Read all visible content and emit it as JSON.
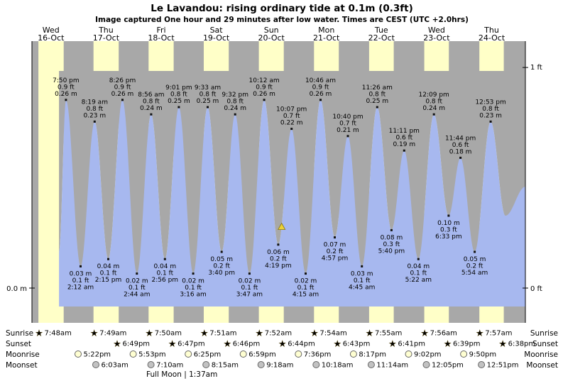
{
  "header": {
    "title": "Le Lavandou: rising ordinary tide at 0.1m (0.3ft)",
    "subtitle": "Image captured One hour and 29 minutes after low water. Times are CEST (UTC +2.0hrs)"
  },
  "chart_data": {
    "type": "area",
    "axis": {
      "left_zero": "0.0 m",
      "right_top": "1 ft",
      "right_bottom": "0 ft"
    },
    "days": [
      {
        "weekday": "Wed",
        "date": "16-Oct"
      },
      {
        "weekday": "Thu",
        "date": "17-Oct"
      },
      {
        "weekday": "Fri",
        "date": "18-Oct"
      },
      {
        "weekday": "Sat",
        "date": "19-Oct"
      },
      {
        "weekday": "Sun",
        "date": "20-Oct"
      },
      {
        "weekday": "Mon",
        "date": "21-Oct"
      },
      {
        "weekday": "Tue",
        "date": "22-Oct"
      },
      {
        "weekday": "Wed",
        "date": "23-Oct"
      },
      {
        "weekday": "Thu",
        "date": "24-Oct"
      }
    ],
    "tides": [
      {
        "day": 0,
        "type": "high",
        "time": "7:50 pm",
        "ft": "0.9 ft",
        "m": "0.26 m"
      },
      {
        "day": 1,
        "type": "low",
        "time": "2:12 am",
        "ft": "0.1 ft",
        "m": "0.03 m"
      },
      {
        "day": 1,
        "type": "high",
        "time": "8:19 am",
        "ft": "0.8 ft",
        "m": "0.23 m"
      },
      {
        "day": 1,
        "type": "low",
        "time": "2:15 pm",
        "ft": "0.1 ft",
        "m": "0.04 m"
      },
      {
        "day": 1,
        "type": "high",
        "time": "8:26 pm",
        "ft": "0.9 ft",
        "m": "0.26 m"
      },
      {
        "day": 2,
        "type": "low",
        "time": "2:44 am",
        "ft": "0.1 ft",
        "m": "0.02 m"
      },
      {
        "day": 2,
        "type": "high",
        "time": "8:56 am",
        "ft": "0.8 ft",
        "m": "0.24 m"
      },
      {
        "day": 2,
        "type": "low",
        "time": "2:56 pm",
        "ft": "0.1 ft",
        "m": "0.04 m"
      },
      {
        "day": 2,
        "type": "high",
        "time": "9:01 pm",
        "ft": "0.8 ft",
        "m": "0.25 m"
      },
      {
        "day": 3,
        "type": "low",
        "time": "3:16 am",
        "ft": "0.1 ft",
        "m": "0.02 m"
      },
      {
        "day": 3,
        "type": "high",
        "time": "9:33 am",
        "ft": "0.8 ft",
        "m": "0.25 m"
      },
      {
        "day": 3,
        "type": "low",
        "time": "3:40 pm",
        "ft": "0.2 ft",
        "m": "0.05 m"
      },
      {
        "day": 3,
        "type": "high",
        "time": "9:32 pm",
        "ft": "0.8 ft",
        "m": "0.24 m"
      },
      {
        "day": 4,
        "type": "low",
        "time": "3:47 am",
        "ft": "0.1 ft",
        "m": "0.02 m"
      },
      {
        "day": 4,
        "type": "high",
        "time": "10:12 am",
        "ft": "0.9 ft",
        "m": "0.26 m"
      },
      {
        "day": 4,
        "type": "low",
        "time": "4:19 pm",
        "ft": "0.2 ft",
        "m": "0.06 m"
      },
      {
        "day": 4,
        "type": "high",
        "time": "10:07 pm",
        "ft": "0.7 ft",
        "m": "0.22 m"
      },
      {
        "day": 5,
        "type": "low",
        "time": "4:15 am",
        "ft": "0.1 ft",
        "m": "0.02 m"
      },
      {
        "day": 5,
        "type": "high",
        "time": "10:46 am",
        "ft": "0.9 ft",
        "m": "0.26 m"
      },
      {
        "day": 5,
        "type": "low",
        "time": "4:57 pm",
        "ft": "0.2 ft",
        "m": "0.07 m"
      },
      {
        "day": 5,
        "type": "high",
        "time": "10:40 pm",
        "ft": "0.7 ft",
        "m": "0.21 m"
      },
      {
        "day": 6,
        "type": "low",
        "time": "4:45 am",
        "ft": "0.1 ft",
        "m": "0.03 m"
      },
      {
        "day": 6,
        "type": "high",
        "time": "11:26 am",
        "ft": "0.8 ft",
        "m": "0.25 m"
      },
      {
        "day": 6,
        "type": "low",
        "time": "5:40 pm",
        "ft": "0.3 ft",
        "m": "0.08 m"
      },
      {
        "day": 6,
        "type": "high",
        "time": "11:11 pm",
        "ft": "0.6 ft",
        "m": "0.19 m"
      },
      {
        "day": 7,
        "type": "low",
        "time": "5:22 am",
        "ft": "0.1 ft",
        "m": "0.04 m"
      },
      {
        "day": 7,
        "type": "high",
        "time": "12:09 pm",
        "ft": "0.8 ft",
        "m": "0.24 m"
      },
      {
        "day": 7,
        "type": "low",
        "time": "6:33 pm",
        "ft": "0.3 ft",
        "m": "0.10 m"
      },
      {
        "day": 7,
        "type": "high",
        "time": "11:44 pm",
        "ft": "0.6 ft",
        "m": "0.18 m"
      },
      {
        "day": 8,
        "type": "low",
        "time": "5:54 am",
        "ft": "0.2 ft",
        "m": "0.05 m"
      },
      {
        "day": 8,
        "type": "high",
        "time": "12:53 pm",
        "ft": "0.8 ft",
        "m": "0.23 m"
      }
    ],
    "capture_marker": {
      "day": 4,
      "time": "5:48 pm",
      "symbol": "yellow-triangle"
    }
  },
  "astro": {
    "rows": [
      {
        "name": "Sunrise",
        "icon": "sunrise-star",
        "times": [
          "7:48am",
          "7:49am",
          "7:50am",
          "7:51am",
          "7:52am",
          "7:54am",
          "7:55am",
          "7:56am",
          "7:57am"
        ]
      },
      {
        "name": "Sunset",
        "icon": "sunset-star",
        "times": [
          "6:49pm",
          "6:47pm",
          "6:46pm",
          "6:44pm",
          "6:43pm",
          "6:41pm",
          "6:39pm",
          "6:38pm"
        ]
      },
      {
        "name": "Moonrise",
        "icon": "moonrise-circle",
        "times": [
          "5:22pm",
          "5:53pm",
          "6:25pm",
          "6:59pm",
          "7:36pm",
          "8:17pm",
          "9:02pm",
          "9:50pm"
        ]
      },
      {
        "name": "Moonset",
        "icon": "moonset-circle",
        "times": [
          "6:03am",
          "7:10am",
          "8:15am",
          "9:18am",
          "10:18am",
          "11:14am",
          "12:05pm",
          "12:51pm"
        ]
      }
    ],
    "full_moon": "Full Moon | 1:37am"
  },
  "colors": {
    "day_band": "#ffffc8",
    "night": "#a8a8a8",
    "water": "#a7b8ef",
    "label_red": "#cc0000",
    "dot": "#111111",
    "sunrise_star": "#f2c230",
    "sunset_star": "#e04818",
    "moonrise_circle": "#ffffd2",
    "moonset_circle": "#c2c2c2",
    "marker_yellow": "#ecd136"
  }
}
